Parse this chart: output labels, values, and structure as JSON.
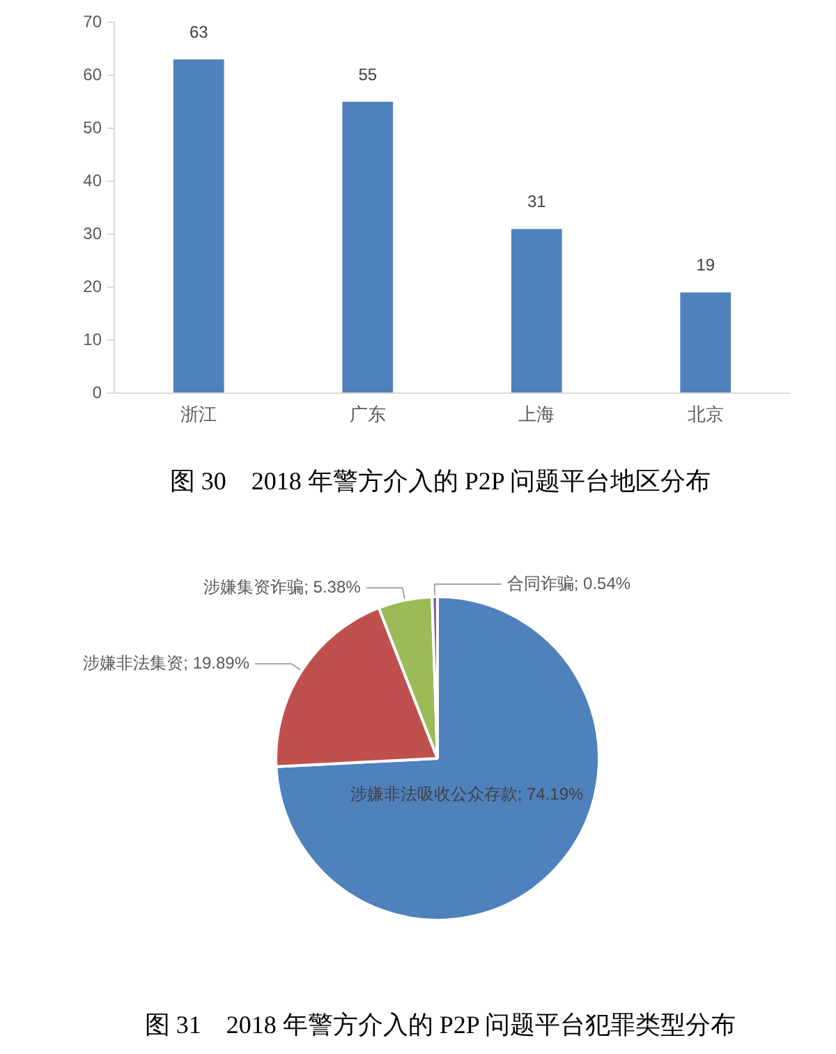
{
  "chart_data": [
    {
      "type": "bar",
      "title": "图 30　2018 年警方介入的 P2P 问题平台地区分布",
      "categories": [
        "浙江",
        "广东",
        "上海",
        "北京"
      ],
      "values": [
        63,
        55,
        31,
        19
      ],
      "color": "#4f81bd",
      "ylim": [
        0,
        70
      ],
      "yticks": [
        0,
        10,
        20,
        30,
        40,
        50,
        60,
        70
      ],
      "data_labels": true
    },
    {
      "type": "pie",
      "title": "图 31　2018 年警方介入的 P2P 问题平台犯罪类型分布",
      "categories": [
        "涉嫌非法吸收公众存款",
        "涉嫌非法集资",
        "涉嫌集资诈骗",
        "合同诈骗"
      ],
      "values": [
        74.19,
        19.89,
        5.38,
        0.54
      ],
      "colors": [
        "#4f81bd",
        "#c0504d",
        "#9bbb59",
        "#8064a2"
      ],
      "value_labels": [
        "; 74.19%",
        "; 19.89%",
        "; 5.38%",
        "; 0.54%"
      ]
    }
  ]
}
